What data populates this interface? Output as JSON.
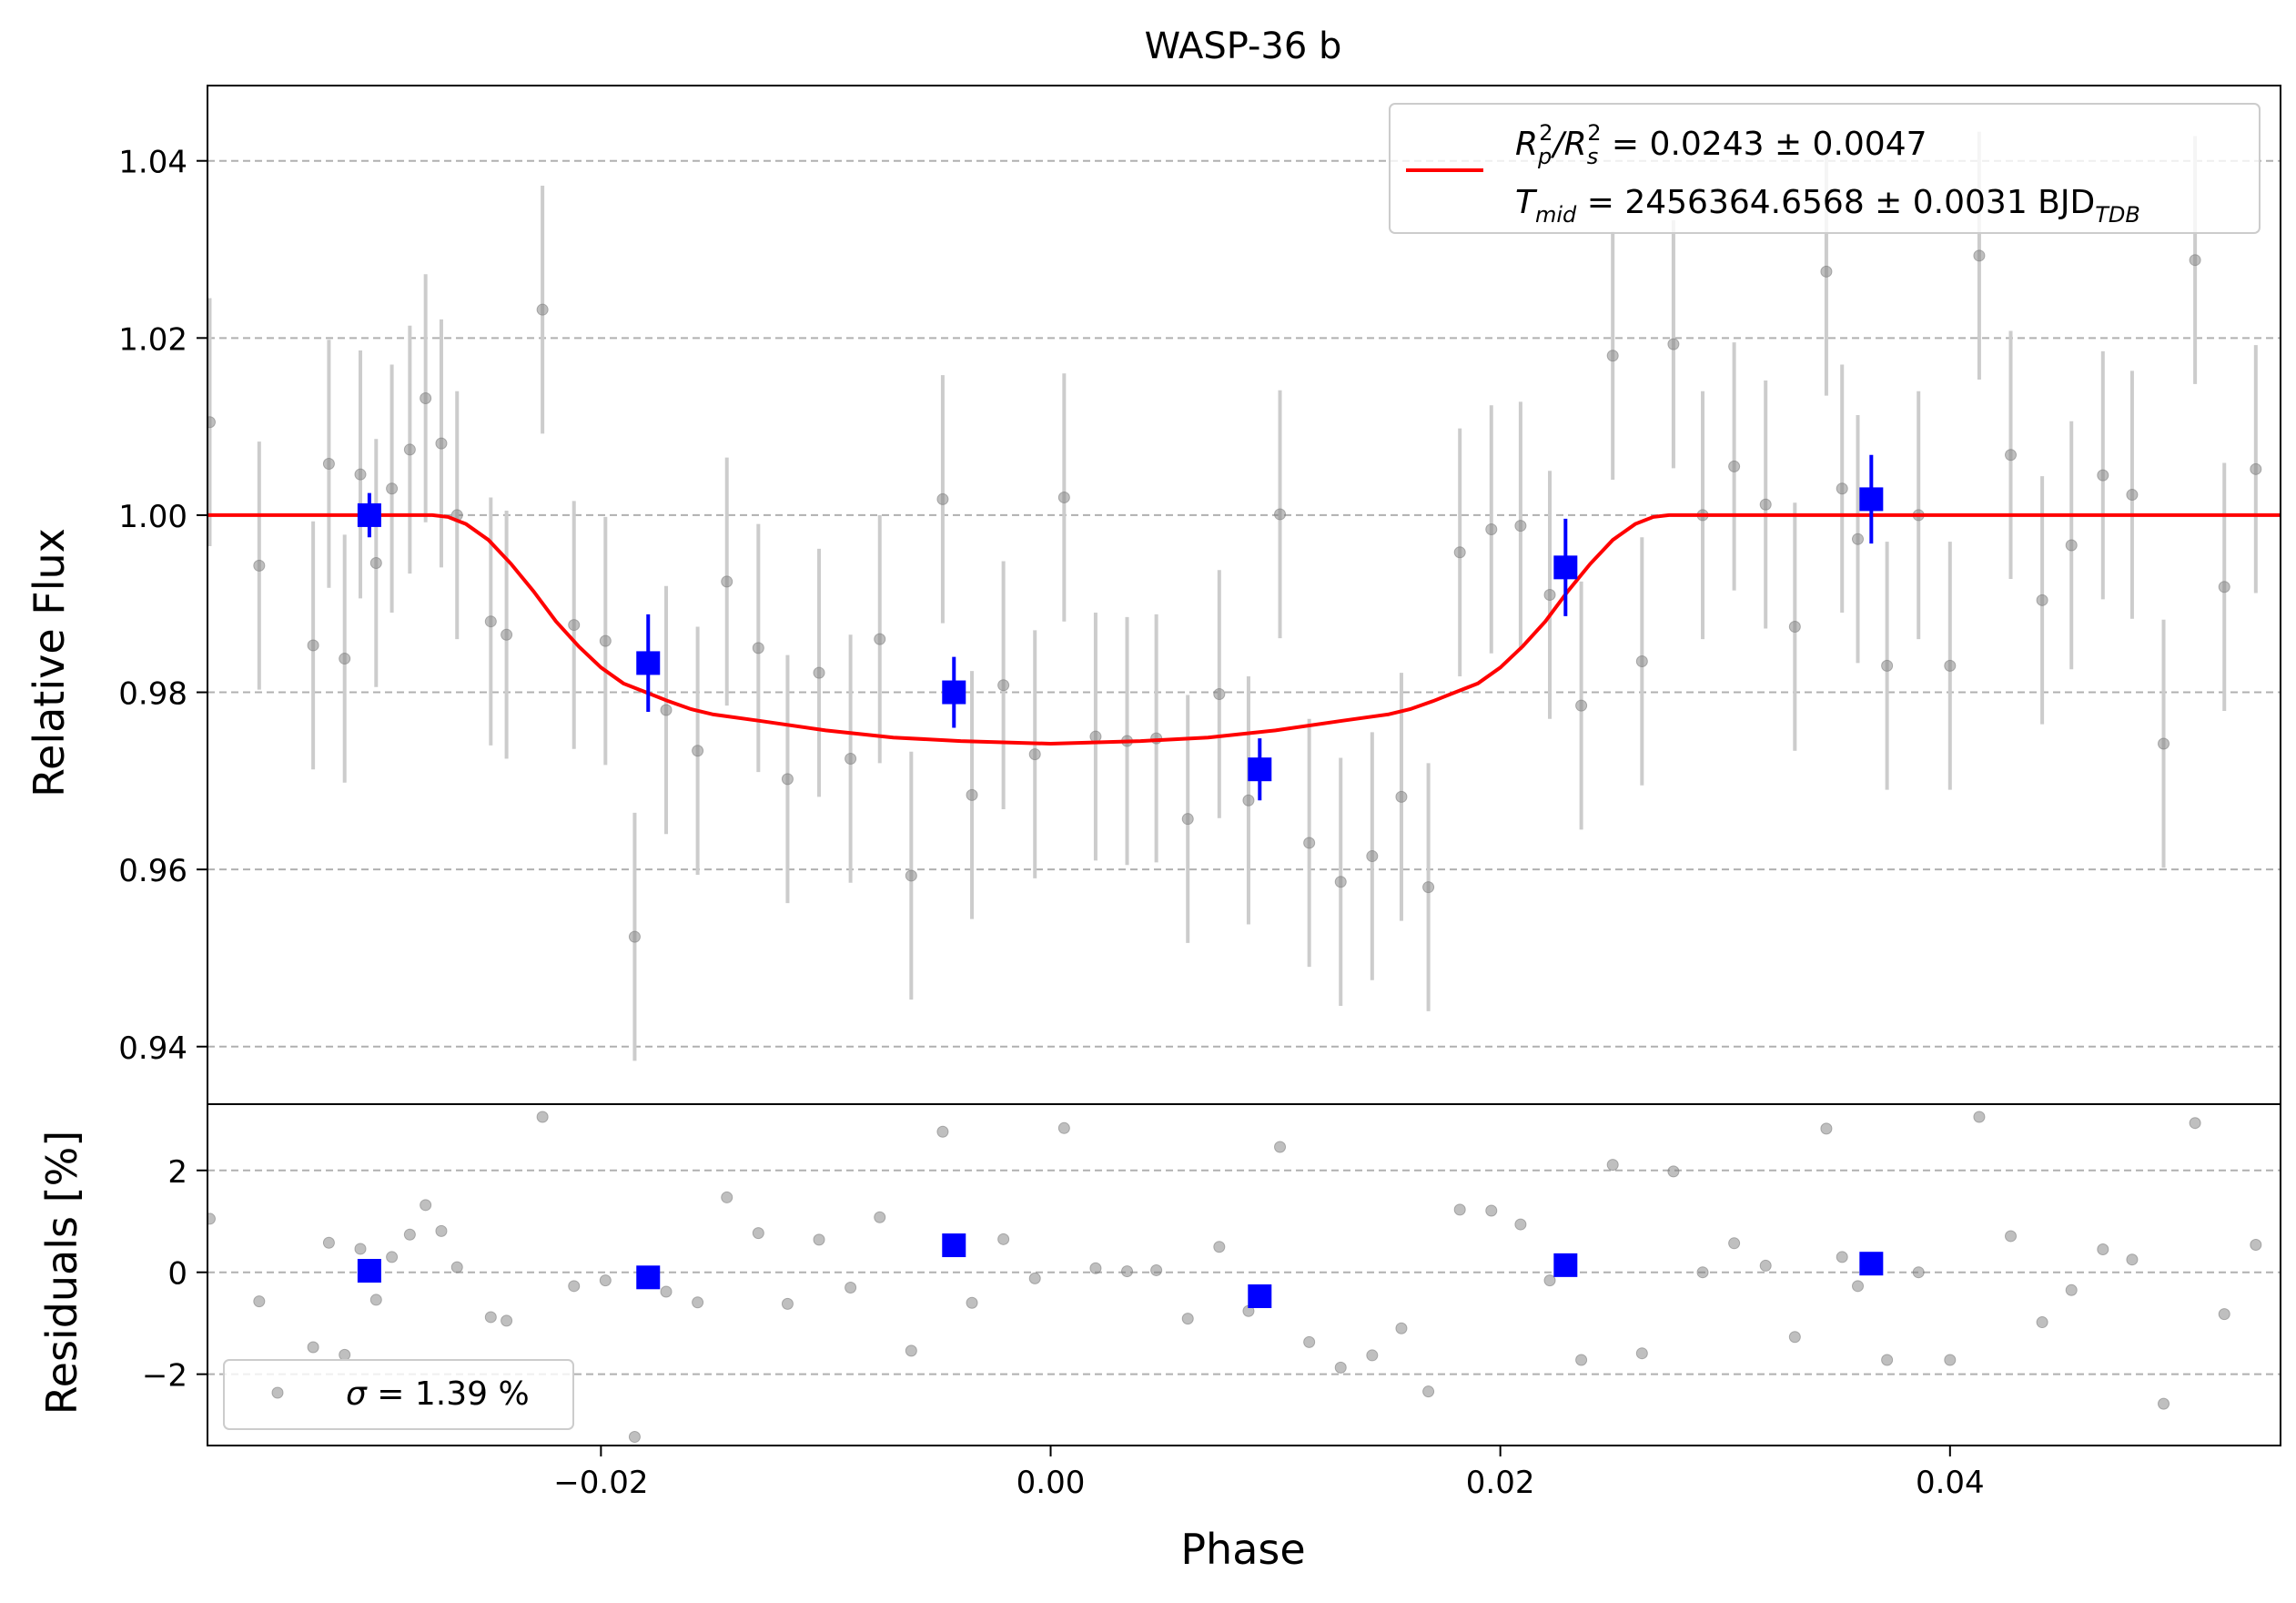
{
  "chart_data": [
    {
      "type": "scatter",
      "title": "WASP-36 b",
      "xlabel": "Phase",
      "ylabel": "Relative Flux",
      "xlim": [
        -0.0375,
        0.0547
      ],
      "ylim": [
        0.9335,
        1.0485
      ],
      "grid": "y-dashed",
      "legend_position": "top-right",
      "x_ticks": [
        {
          "value": -0.02,
          "label": "−0.02"
        },
        {
          "value": 0.0,
          "label": "0.00"
        },
        {
          "value": 0.02,
          "label": "0.02"
        },
        {
          "value": 0.04,
          "label": "0.04"
        }
      ],
      "y_ticks": [
        {
          "value": 0.94,
          "label": "0.94"
        },
        {
          "value": 0.96,
          "label": "0.96"
        },
        {
          "value": 0.98,
          "label": "0.98"
        },
        {
          "value": 1.0,
          "label": "1.00"
        },
        {
          "value": 1.02,
          "label": "1.02"
        },
        {
          "value": 1.04,
          "label": "1.04"
        }
      ],
      "legend": {
        "line1_prefix": "R",
        "line1_sub_a": "p",
        "line1_sup_a": "2",
        "line1_slash": "/R",
        "line1_sub_b": "s",
        "line1_sup_b": "2",
        "line1_value": " = 0.0243 ± 0.0047",
        "line2_prefix": "T",
        "line2_sub": "mid",
        "line2_value": " = 2456364.6568 ± 0.0031 BJD",
        "line2_unit_sub": "TDB"
      },
      "raw_data": {
        "error": 0.014,
        "points": [
          [
            -0.0374,
            1.0105
          ],
          [
            -0.0352,
            0.9943
          ],
          [
            -0.0328,
            0.9853
          ],
          [
            -0.0321,
            1.0058
          ],
          [
            -0.0314,
            0.9838
          ],
          [
            -0.0307,
            1.0046
          ],
          [
            -0.03,
            0.9946
          ],
          [
            -0.0293,
            1.003
          ],
          [
            -0.0285,
            1.0074
          ],
          [
            -0.0278,
            1.0132
          ],
          [
            -0.0271,
            1.0081
          ],
          [
            -0.0264,
            1.0
          ],
          [
            -0.0249,
            0.988
          ],
          [
            -0.0242,
            0.9865
          ],
          [
            -0.0226,
            1.0232
          ],
          [
            -0.0212,
            0.9876
          ],
          [
            -0.0198,
            0.9858
          ],
          [
            -0.0185,
            0.9524
          ],
          [
            -0.0171,
            0.978
          ],
          [
            -0.0157,
            0.9734
          ],
          [
            -0.0144,
            0.9925
          ],
          [
            -0.013,
            0.985
          ],
          [
            -0.0117,
            0.9702
          ],
          [
            -0.0103,
            0.9822
          ],
          [
            -0.0089,
            0.9725
          ],
          [
            -0.0076,
            0.986
          ],
          [
            -0.0062,
            0.9593
          ],
          [
            -0.0048,
            1.0018
          ],
          [
            -0.0035,
            0.9684
          ],
          [
            -0.0021,
            0.9808
          ],
          [
            -0.0007,
            0.973
          ],
          [
            0.0006,
            1.002
          ],
          [
            0.002,
            0.975
          ],
          [
            0.0034,
            0.9745
          ],
          [
            0.0047,
            0.9748
          ],
          [
            0.0061,
            0.9657
          ],
          [
            0.0075,
            0.9798
          ],
          [
            0.0088,
            0.9678
          ],
          [
            0.0102,
            1.0001
          ],
          [
            0.0115,
            0.963
          ],
          [
            0.0129,
            0.9586
          ],
          [
            0.0143,
            0.9615
          ],
          [
            0.0156,
            0.9682
          ],
          [
            0.0168,
            0.958
          ],
          [
            0.0182,
            0.9958
          ],
          [
            0.0196,
            0.9984
          ],
          [
            0.0209,
            0.9988
          ],
          [
            0.0222,
            0.991
          ],
          [
            0.0236,
            0.9785
          ],
          [
            0.025,
            1.018
          ],
          [
            0.0263,
            0.9835
          ],
          [
            0.0277,
            1.0193
          ],
          [
            0.029,
            1.0
          ],
          [
            0.0304,
            1.0055
          ],
          [
            0.0318,
            1.0012
          ],
          [
            0.0331,
            0.9874
          ],
          [
            0.0345,
            1.0275
          ],
          [
            0.0352,
            1.003
          ],
          [
            0.0359,
            0.9973
          ],
          [
            0.0372,
            0.983
          ],
          [
            0.0386,
            1.0
          ],
          [
            0.04,
            0.983
          ],
          [
            0.0413,
            1.0293
          ],
          [
            0.0427,
            1.0068
          ],
          [
            0.0441,
            0.9904
          ],
          [
            0.0454,
            0.9966
          ],
          [
            0.0468,
            1.0045
          ],
          [
            0.0481,
            1.0023
          ],
          [
            0.0495,
            0.9742
          ],
          [
            0.0509,
            1.0288
          ],
          [
            0.0522,
            0.9919
          ],
          [
            0.0536,
            1.0052
          ]
        ]
      },
      "binned_data": {
        "points": [
          [
            -0.0303,
            1.0,
            0.0025
          ],
          [
            -0.0179,
            0.9833,
            0.0055
          ],
          [
            -0.0043,
            0.98,
            0.004
          ],
          [
            0.0093,
            0.9713,
            0.0035
          ],
          [
            0.0229,
            0.9941,
            0.0055
          ],
          [
            0.0365,
            1.0018,
            0.005
          ]
        ]
      },
      "model": {
        "points": [
          [
            -0.0375,
            1.0
          ],
          [
            -0.0275,
            1.0
          ],
          [
            -0.0268,
            0.9998
          ],
          [
            -0.026,
            0.999
          ],
          [
            -0.025,
            0.9972
          ],
          [
            -0.024,
            0.9945
          ],
          [
            -0.023,
            0.9914
          ],
          [
            -0.022,
            0.988
          ],
          [
            -0.021,
            0.9852
          ],
          [
            -0.02,
            0.9828
          ],
          [
            -0.019,
            0.981
          ],
          [
            -0.018,
            0.98
          ],
          [
            -0.017,
            0.979
          ],
          [
            -0.016,
            0.9781
          ],
          [
            -0.015,
            0.9775
          ],
          [
            -0.013,
            0.9768
          ],
          [
            -0.01,
            0.9757
          ],
          [
            -0.007,
            0.9749
          ],
          [
            -0.004,
            0.9745
          ],
          [
            0.0,
            0.9742
          ],
          [
            0.004,
            0.9745
          ],
          [
            0.007,
            0.9749
          ],
          [
            0.01,
            0.9757
          ],
          [
            0.013,
            0.9768
          ],
          [
            0.015,
            0.9775
          ],
          [
            0.016,
            0.9781
          ],
          [
            0.017,
            0.979
          ],
          [
            0.018,
            0.98
          ],
          [
            0.019,
            0.981
          ],
          [
            0.02,
            0.9828
          ],
          [
            0.021,
            0.9852
          ],
          [
            0.022,
            0.988
          ],
          [
            0.023,
            0.9914
          ],
          [
            0.024,
            0.9945
          ],
          [
            0.025,
            0.9972
          ],
          [
            0.026,
            0.999
          ],
          [
            0.0268,
            0.9998
          ],
          [
            0.0275,
            1.0
          ],
          [
            0.0547,
            1.0
          ]
        ]
      },
      "colors": {
        "raw": "#808080",
        "raw_error": "#cccccc",
        "binned": "#0000ff",
        "model": "#ff0000",
        "grid": "#b0b0b0"
      }
    },
    {
      "type": "scatter",
      "xlabel": "Phase",
      "ylabel": "Residuals [%]",
      "xlim": [
        -0.0375,
        0.0547
      ],
      "ylim": [
        -3.4,
        3.3
      ],
      "grid": "y-dashed",
      "legend_position": "bottom-left",
      "y_ticks": [
        {
          "value": -2,
          "label": "−2"
        },
        {
          "value": 0,
          "label": "0"
        },
        {
          "value": 2,
          "label": "2"
        }
      ],
      "legend": {
        "sigma_symbol": "σ",
        "sigma_value": " = 1.39 %"
      },
      "raw_residuals": [
        [
          -0.0374,
          1.05
        ],
        [
          -0.0352,
          -0.57
        ],
        [
          -0.0328,
          -1.47
        ],
        [
          -0.0321,
          0.58
        ],
        [
          -0.0314,
          -1.62
        ],
        [
          -0.0307,
          0.46
        ],
        [
          -0.03,
          -0.54
        ],
        [
          -0.0293,
          0.3
        ],
        [
          -0.0285,
          0.74
        ],
        [
          -0.0278,
          1.32
        ],
        [
          -0.0271,
          0.81
        ],
        [
          -0.0264,
          0.1
        ],
        [
          -0.0249,
          -0.88
        ],
        [
          -0.0242,
          -0.95
        ],
        [
          -0.0226,
          3.05
        ],
        [
          -0.0212,
          -0.27
        ],
        [
          -0.0198,
          -0.16
        ],
        [
          -0.0185,
          -3.23
        ],
        [
          -0.0171,
          -0.38
        ],
        [
          -0.0157,
          -0.59
        ],
        [
          -0.0144,
          1.47
        ],
        [
          -0.013,
          0.77
        ],
        [
          -0.0117,
          -0.62
        ],
        [
          -0.0103,
          0.64
        ],
        [
          -0.0089,
          -0.3
        ],
        [
          -0.0076,
          1.08
        ],
        [
          -0.0062,
          -1.54
        ],
        [
          -0.0048,
          2.76
        ],
        [
          -0.0035,
          -0.6
        ],
        [
          -0.0021,
          0.65
        ],
        [
          -0.0007,
          -0.12
        ],
        [
          0.0006,
          2.83
        ],
        [
          0.002,
          0.08
        ],
        [
          0.0034,
          0.02
        ],
        [
          0.0047,
          0.04
        ],
        [
          0.0061,
          -0.91
        ],
        [
          0.0075,
          0.5
        ],
        [
          0.0088,
          -0.76
        ],
        [
          0.0102,
          2.46
        ],
        [
          0.0115,
          -1.37
        ],
        [
          0.0129,
          -1.87
        ],
        [
          0.0143,
          -1.63
        ],
        [
          0.0156,
          -1.1
        ],
        [
          0.0168,
          -2.34
        ],
        [
          0.0182,
          1.23
        ],
        [
          0.0196,
          1.21
        ],
        [
          0.0209,
          0.94
        ],
        [
          0.0222,
          -0.16
        ],
        [
          0.0236,
          -1.72
        ],
        [
          0.025,
          2.11
        ],
        [
          0.0263,
          -1.59
        ],
        [
          0.0277,
          1.98
        ],
        [
          0.029,
          0.0
        ],
        [
          0.0304,
          0.57
        ],
        [
          0.0318,
          0.13
        ],
        [
          0.0331,
          -1.27
        ],
        [
          0.0345,
          2.82
        ],
        [
          0.0352,
          0.3
        ],
        [
          0.0359,
          -0.27
        ],
        [
          0.0372,
          -1.72
        ],
        [
          0.0386,
          0.0
        ],
        [
          0.04,
          -1.72
        ],
        [
          0.0413,
          3.05
        ],
        [
          0.0427,
          0.71
        ],
        [
          0.0441,
          -0.98
        ],
        [
          0.0454,
          -0.35
        ],
        [
          0.0468,
          0.45
        ],
        [
          0.0481,
          0.25
        ],
        [
          0.0495,
          -2.58
        ],
        [
          0.0509,
          2.93
        ],
        [
          0.0522,
          -0.82
        ],
        [
          0.0536,
          0.54
        ]
      ],
      "binned_residuals": [
        [
          -0.0303,
          0.03
        ],
        [
          -0.0179,
          -0.1
        ],
        [
          -0.0043,
          0.53
        ],
        [
          0.0093,
          -0.47
        ],
        [
          0.0229,
          0.14
        ],
        [
          0.0365,
          0.17
        ]
      ]
    }
  ]
}
